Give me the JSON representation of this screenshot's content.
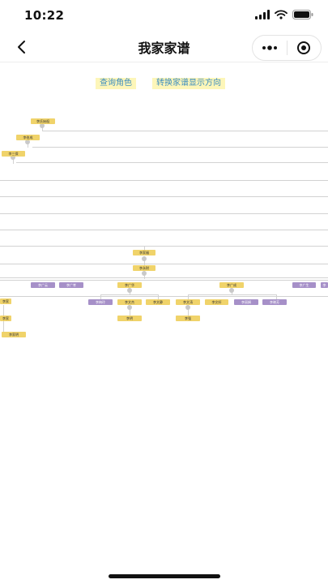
{
  "status_bar": {
    "time": "10:22"
  },
  "nav": {
    "title": "我家家谱"
  },
  "toolbar": {
    "query_role_label": "查询角色",
    "switch_direction_label": "转换家谱显示方向"
  },
  "tree": {
    "nodes": [
      {
        "label": "李氏始祖",
        "variant": "yellow"
      },
      {
        "label": "李伯成",
        "variant": "yellow"
      },
      {
        "label": "李三保",
        "variant": "yellow"
      },
      {
        "label": "李家福",
        "variant": "yellow"
      },
      {
        "label": "李永财",
        "variant": "yellow"
      },
      {
        "label": "李广云",
        "variant": "purple"
      },
      {
        "label": "李广孝",
        "variant": "purple"
      },
      {
        "label": "李广华",
        "variant": "yellow"
      },
      {
        "label": "李广成",
        "variant": "yellow"
      },
      {
        "label": "李广生",
        "variant": "purple"
      },
      {
        "label": "李",
        "variant": "purple"
      },
      {
        "label": "李家",
        "variant": "yellow"
      },
      {
        "label": "李家",
        "variant": "yellow"
      },
      {
        "label": "李家明",
        "variant": "yellow"
      },
      {
        "label": "李梅玲",
        "variant": "purple"
      },
      {
        "label": "李文杰",
        "variant": "yellow"
      },
      {
        "label": "李文静",
        "variant": "yellow"
      },
      {
        "label": "李文涛",
        "variant": "yellow"
      },
      {
        "label": "李文轩",
        "variant": "yellow"
      },
      {
        "label": "李丽娟",
        "variant": "purple"
      },
      {
        "label": "李晓芳",
        "variant": "purple"
      },
      {
        "label": "李明",
        "variant": "yellow"
      },
      {
        "label": "李强",
        "variant": "yellow"
      }
    ]
  },
  "colors": {
    "node_yellow": "#f0d36a",
    "node_purple": "#a690c8",
    "button_bg": "#fdf6b9",
    "button_text": "#3d8dbf",
    "line": "#d2d2d2"
  },
  "icons": [
    "back-arrow-icon",
    "more-dots-icon",
    "close-target-icon",
    "signal-icon",
    "wifi-icon",
    "battery-icon"
  ]
}
